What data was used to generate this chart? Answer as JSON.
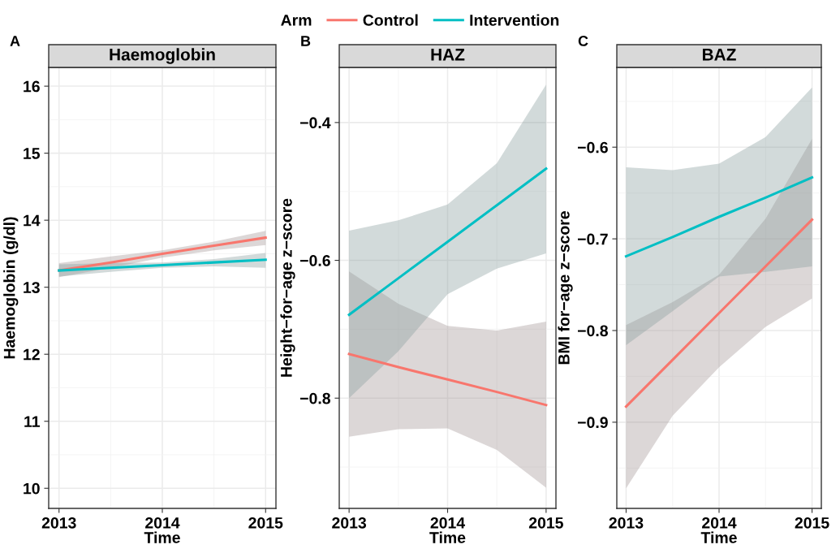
{
  "chart_data": [
    {
      "type": "line",
      "title": "Haemoglobin",
      "xlabel": "Time",
      "ylabel": "Haemoglobin (g/dl)",
      "annotations": [
        "A"
      ],
      "legend_title": "Arm",
      "legend": "top",
      "grid": true,
      "xlim": [
        2012.9,
        2015.1
      ],
      "xticks": [
        2013,
        2014,
        2015
      ],
      "ylim": [
        9.7,
        16.28
      ],
      "yticks": [
        10,
        11,
        12,
        13,
        14,
        15,
        16
      ],
      "series": [
        {
          "name": "Control",
          "color": "#f8766d",
          "x": [
            2013,
            2013.5,
            2014,
            2014.5,
            2015
          ],
          "values": [
            13.25,
            13.37,
            13.5,
            13.62,
            13.74
          ],
          "lower": [
            13.15,
            13.29,
            13.44,
            13.55,
            13.63
          ],
          "upper": [
            13.36,
            13.46,
            13.55,
            13.68,
            13.84
          ]
        },
        {
          "name": "Intervention",
          "color": "#00bfc4",
          "x": [
            2013,
            2013.5,
            2014,
            2014.5,
            2015
          ],
          "values": [
            13.25,
            13.29,
            13.33,
            13.37,
            13.41
          ],
          "lower": [
            13.16,
            13.23,
            13.29,
            13.31,
            13.29
          ],
          "upper": [
            13.34,
            13.36,
            13.37,
            13.42,
            13.51
          ]
        }
      ]
    },
    {
      "type": "line",
      "title": "HAZ",
      "xlabel": "Time",
      "ylabel": "Height−for−age z−score",
      "annotations": [
        "B"
      ],
      "grid": true,
      "xlim": [
        2012.9,
        2015.1
      ],
      "xticks": [
        2013,
        2014,
        2015
      ],
      "ylim": [
        -0.96,
        -0.32
      ],
      "yticks": [
        {
          "value": -0.8,
          "label": "−0.8"
        },
        {
          "value": -0.6,
          "label": "−0.6"
        },
        {
          "value": -0.4,
          "label": "−0.4"
        }
      ],
      "series": [
        {
          "name": "Control",
          "color": "#f8766d",
          "x": [
            2013,
            2013.5,
            2014,
            2014.5,
            2015
          ],
          "values": [
            -0.736,
            -0.755,
            -0.773,
            -0.791,
            -0.81
          ],
          "lower": [
            -0.856,
            -0.845,
            -0.844,
            -0.875,
            -0.93
          ],
          "upper": [
            -0.616,
            -0.663,
            -0.695,
            -0.702,
            -0.689
          ]
        },
        {
          "name": "Intervention",
          "color": "#00bfc4",
          "x": [
            2013,
            2013.5,
            2014,
            2014.5,
            2015
          ],
          "values": [
            -0.679,
            -0.626,
            -0.573,
            -0.52,
            -0.467
          ],
          "lower": [
            -0.8,
            -0.732,
            -0.649,
            -0.612,
            -0.59
          ],
          "upper": [
            -0.557,
            -0.542,
            -0.519,
            -0.459,
            -0.345
          ]
        }
      ]
    },
    {
      "type": "line",
      "title": "BAZ",
      "xlabel": "Time",
      "ylabel": "BMI for−age z−score",
      "annotations": [
        "C"
      ],
      "grid": true,
      "xlim": [
        2012.9,
        2015.1
      ],
      "xticks": [
        2013,
        2014,
        2015
      ],
      "ylim": [
        -0.994,
        -0.513
      ],
      "yticks": [
        {
          "value": -0.9,
          "label": "−0.9"
        },
        {
          "value": -0.8,
          "label": "−0.8"
        },
        {
          "value": -0.7,
          "label": "−0.7"
        },
        {
          "value": -0.6,
          "label": "−0.6"
        }
      ],
      "series": [
        {
          "name": "Control",
          "color": "#f8766d",
          "x": [
            2013,
            2013.5,
            2014,
            2014.5,
            2015
          ],
          "values": [
            -0.883,
            -0.832,
            -0.781,
            -0.73,
            -0.679
          ],
          "lower": [
            -0.972,
            -0.893,
            -0.84,
            -0.796,
            -0.765
          ],
          "upper": [
            -0.794,
            -0.769,
            -0.739,
            -0.678,
            -0.591
          ]
        },
        {
          "name": "Intervention",
          "color": "#00bfc4",
          "x": [
            2013,
            2013.5,
            2014,
            2014.5,
            2015
          ],
          "values": [
            -0.719,
            -0.698,
            -0.676,
            -0.655,
            -0.633
          ],
          "lower": [
            -0.816,
            -0.779,
            -0.741,
            -0.736,
            -0.73
          ],
          "upper": [
            -0.622,
            -0.625,
            -0.618,
            -0.589,
            -0.535
          ]
        }
      ]
    }
  ]
}
